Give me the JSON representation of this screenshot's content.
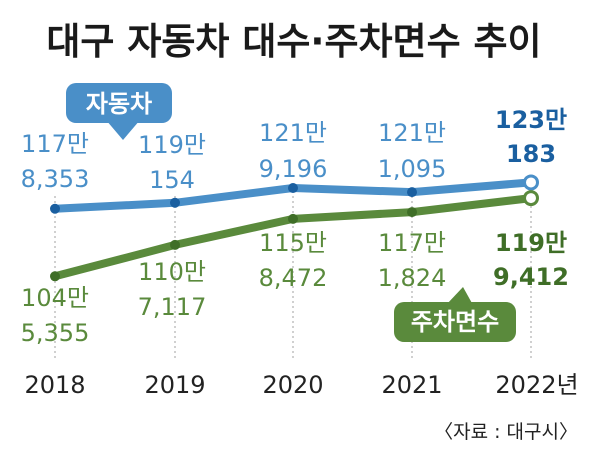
{
  "chart_data": {
    "type": "line",
    "title": "대구 자동차 대수·주차면수 추이",
    "categories": [
      "2018",
      "2019",
      "2020",
      "2021",
      "2022년"
    ],
    "series": [
      {
        "name": "자동차",
        "values": [
          1178353,
          1190154,
          1219196,
          1211095,
          1230183
        ],
        "labels_line1": [
          "117만",
          "119만",
          "121만",
          "121만",
          "123만"
        ],
        "labels_line2": [
          "8,353",
          "154",
          "9,196",
          "1,095",
          "183"
        ],
        "color": "#4a8fc8",
        "highlight_color": "#1a5fa0"
      },
      {
        "name": "주차면수",
        "values": [
          1045355,
          1107117,
          1158472,
          1171824,
          1199412
        ],
        "labels_line1": [
          "104만",
          "110만",
          "115만",
          "117만",
          "119만"
        ],
        "labels_line2": [
          "5,355",
          "7,117",
          "8,472",
          "1,824",
          "9,412"
        ],
        "color": "#5a8a3c",
        "highlight_color": "#3f6e27"
      }
    ],
    "source": "〈자료 : 대구시〉"
  }
}
